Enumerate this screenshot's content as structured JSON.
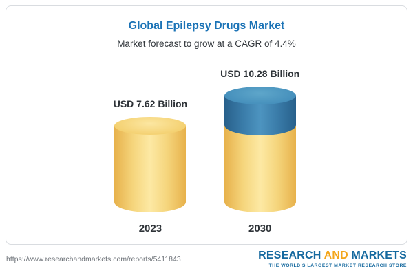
{
  "chart_data": {
    "type": "bar",
    "style": "3d-cylinder",
    "title": "Global Epilepsy Drugs Market",
    "subtitle": "Market forecast to grow at a CAGR of 4.4%",
    "categories": [
      "2023",
      "2030"
    ],
    "values": [
      7.62,
      10.28
    ],
    "value_labels": [
      "USD 7.62 Billion",
      "USD 10.28 Billion"
    ],
    "unit": "USD Billion",
    "cagr_percent": 4.4,
    "ylim": [
      0,
      11
    ],
    "legend": "none",
    "grid": "off",
    "colors": {
      "base_segment": "#f5d57c",
      "growth_segment": "#3a7ca9",
      "title_blue": "#1b73b6"
    },
    "notes": "2030 cylinder shows the 2023 base value in yellow plus growth to 10.28 as a blue top segment"
  },
  "footer": {
    "url": "https://www.researchandmarkets.com/reports/5411843",
    "logo": {
      "research": "RESEARCH",
      "and": "AND",
      "markets": "MARKETS",
      "tagline": "THE WORLD'S LARGEST MARKET RESEARCH STORE",
      "colors": {
        "text_blue": "#15699f",
        "and_yellow": "#f3a61c"
      }
    }
  }
}
